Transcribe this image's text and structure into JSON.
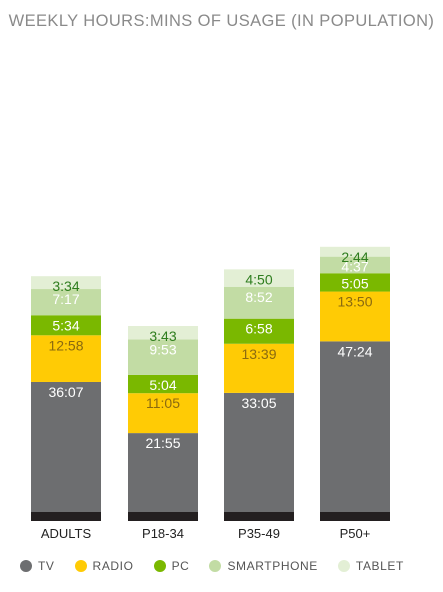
{
  "chart_data": {
    "type": "bar",
    "stacked": true,
    "title": "WEEKLY HOURS:MINS OF USAGE (IN POPULATION)",
    "categories": [
      "ADULTS",
      "P18-34",
      "P35-49",
      "P50+"
    ],
    "series": [
      {
        "name": "TV",
        "color": "#6d6e70",
        "label_color": "#ffffff",
        "values": [
          36.117,
          21.917,
          33.083,
          47.4
        ],
        "labels": [
          "36:07",
          "21:55",
          "33:05",
          "47:24"
        ]
      },
      {
        "name": "RADIO",
        "color": "#ffcb05",
        "label_color": "#8a6a10",
        "values": [
          12.967,
          11.083,
          13.65,
          13.833
        ],
        "labels": [
          "12:58",
          "11:05",
          "13:39",
          "13:50"
        ]
      },
      {
        "name": "PC",
        "color": "#7ab800",
        "label_color": "#ffffff",
        "values": [
          5.567,
          5.067,
          6.967,
          5.083
        ],
        "labels": [
          "5:34",
          "5:04",
          "6:58",
          "5:05"
        ]
      },
      {
        "name": "SMARTPHONE",
        "color": "#c2dca4",
        "label_color": "#ffffff",
        "values": [
          7.283,
          9.883,
          8.867,
          4.617
        ],
        "labels": [
          "7:17",
          "9:53",
          "8:52",
          "4:37"
        ]
      },
      {
        "name": "TABLET",
        "color": "#e3efd5",
        "label_color": "#2e7d1e",
        "values": [
          3.567,
          3.717,
          4.833,
          2.733
        ],
        "labels": [
          "3:34",
          "3:43",
          "4:50",
          "2:44"
        ]
      }
    ],
    "bar_base_color": "#231f20",
    "legend_position": "bottom",
    "grid": false
  }
}
